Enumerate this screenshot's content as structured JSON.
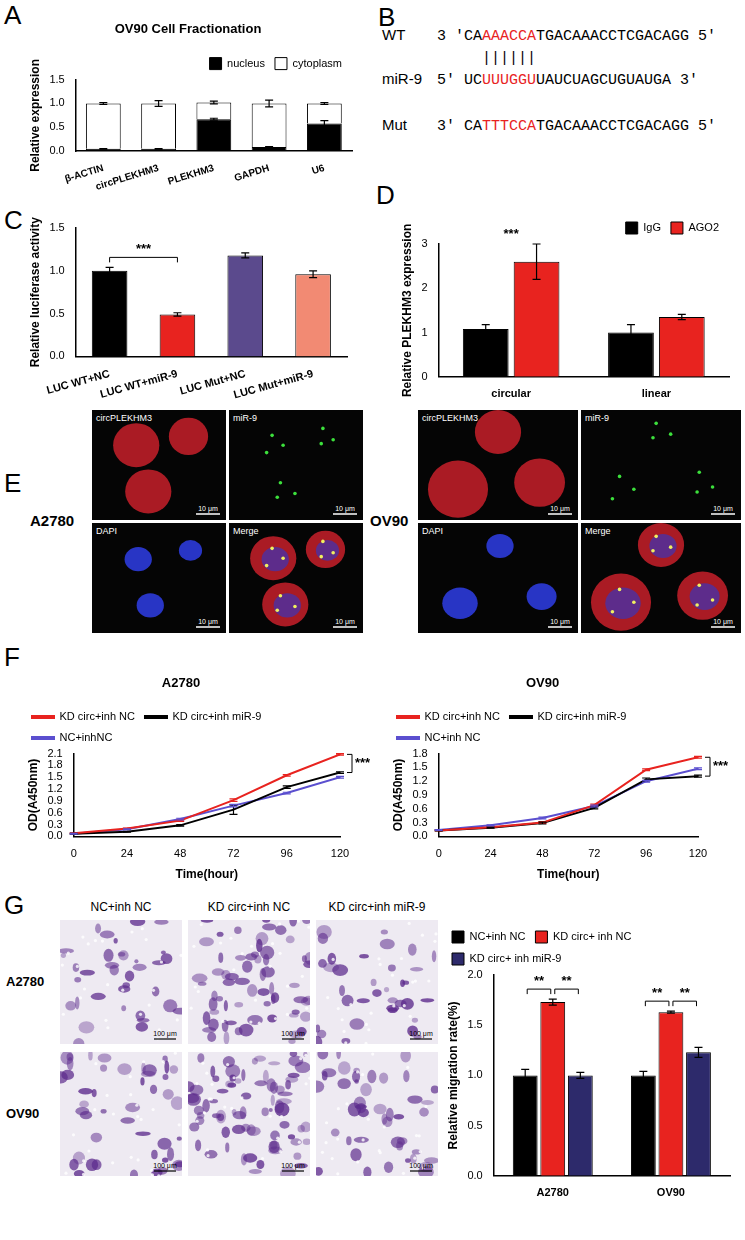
{
  "chart_data": [
    {
      "panel": "A",
      "type": "bar",
      "stacked": true,
      "title": "OV90 Cell Fractionation",
      "categories": [
        "β-ACTIN",
        "circPLEKHM3",
        "PLEKHM3",
        "GAPDH",
        "U6"
      ],
      "series": [
        {
          "name": "nucleus",
          "color": "#000000",
          "values": [
            0.05,
            0.05,
            0.67,
            0.09,
            0.58
          ],
          "errors": [
            0.005,
            0.005,
            0.02,
            0.005,
            0.06
          ]
        },
        {
          "name": "cytoplasm",
          "color": "#ffffff",
          "values": [
            0.95,
            0.95,
            0.35,
            0.91,
            0.42
          ],
          "errors": [
            0.02,
            0.06,
            0.03,
            0.07,
            0.02
          ]
        }
      ],
      "y_label": "Relative expression",
      "ylim": [
        0,
        1.5
      ],
      "yticks": [
        {
          "value": 0,
          "label": "0.0"
        },
        0.5,
        {
          "value": 1,
          "label": "1.0"
        },
        1.5
      ],
      "legend": "upper right",
      "grid": false
    },
    {
      "panel": "C",
      "type": "bar",
      "categories": [
        "LUC WT+NC",
        "LUC WT+miR-9",
        "LUC Mut+NC",
        "LUC Mut+miR-9"
      ],
      "values": [
        1.0,
        0.49,
        1.18,
        0.96
      ],
      "errors": [
        0.04,
        0.02,
        0.03,
        0.04
      ],
      "colors": [
        "#000000",
        "#e8231f",
        "#5b4a8d",
        "#f28a73"
      ],
      "y_label": "Relative luciferase activity",
      "ylim": [
        0,
        1.5
      ],
      "yticks": [
        {
          "value": 0,
          "label": "0.0"
        },
        0.5,
        {
          "value": 1,
          "label": "1.0"
        },
        1.5
      ],
      "grid": false,
      "annotations": [
        {
          "text": "***",
          "between": [
            "LUC WT+NC",
            "LUC WT+miR-9"
          ]
        }
      ]
    },
    {
      "panel": "D",
      "type": "bar",
      "categories": [
        "circular",
        "linear"
      ],
      "series": [
        {
          "name": "IgG",
          "color": "#000000",
          "values": [
            1.08,
            1.0
          ],
          "errors": [
            0.1,
            0.18
          ]
        },
        {
          "name": "AGO2",
          "color": "#e8231f",
          "values": [
            2.6,
            1.35
          ],
          "errors": [
            0.4,
            0.06
          ]
        }
      ],
      "y_label": "Relative PLEKHM3 expression",
      "ylim": [
        0,
        3
      ],
      "yticks": [
        0,
        1,
        2,
        3
      ],
      "legend": "upper right",
      "grid": false,
      "annotations": [
        {
          "text": "***",
          "category": "circular"
        }
      ]
    },
    {
      "panel": "F",
      "type": "line",
      "title": "A2780",
      "x": [
        0,
        24,
        48,
        72,
        96,
        120
      ],
      "series": [
        {
          "name": "KD circ+inh NC",
          "color": "#e8231f",
          "values": [
            0.08,
            0.2,
            0.4,
            0.92,
            1.55,
            2.08
          ],
          "errors": [
            0.01,
            0.01,
            0.02,
            0.03,
            0.02,
            0.02
          ]
        },
        {
          "name": "KD circ+inh miR-9",
          "color": "#000000",
          "values": [
            0.07,
            0.12,
            0.28,
            0.68,
            1.25,
            1.62
          ],
          "errors": [
            0.01,
            0.01,
            0.02,
            0.12,
            0.03,
            0.02
          ]
        },
        {
          "name": "NC+inhNC",
          "color": "#5b4fcf",
          "values": [
            0.07,
            0.18,
            0.44,
            0.78,
            1.1,
            1.5
          ],
          "errors": [
            0.01,
            0.01,
            0.02,
            0.03,
            0.02,
            0.02
          ]
        }
      ],
      "x_label": "Time(hour)",
      "y_label": "OD(A450nm)",
      "xlim": [
        0,
        120
      ],
      "xticks": [
        0,
        24,
        48,
        72,
        96,
        120
      ],
      "ylim": [
        0,
        2.1
      ],
      "yticks": [
        {
          "value": 0,
          "label": "0.0"
        },
        0.3,
        0.6,
        0.9,
        1.2,
        1.5,
        1.8,
        2.1
      ],
      "legend": "upper left",
      "grid": false,
      "annotations": [
        {
          "text": "***",
          "between": [
            "KD circ+inh NC",
            "KD circ+inh miR-9"
          ]
        }
      ]
    },
    {
      "type": "line",
      "title": "OV90",
      "x": [
        0,
        24,
        48,
        72,
        96,
        120
      ],
      "series": [
        {
          "name": "KD circ+inh NC",
          "color": "#e8231f",
          "values": [
            0.13,
            0.2,
            0.3,
            0.68,
            1.45,
            1.72
          ],
          "errors": [
            0.01,
            0.01,
            0.02,
            0.02,
            0.02,
            0.02
          ]
        },
        {
          "name": "KD circ+inh miR-9",
          "color": "#000000",
          "values": [
            0.13,
            0.19,
            0.29,
            0.62,
            1.24,
            1.31
          ],
          "errors": [
            0.01,
            0.01,
            0.02,
            0.02,
            0.03,
            0.02
          ]
        },
        {
          "name": "NC+inh NC",
          "color": "#5b4fcf",
          "values": [
            0.14,
            0.24,
            0.4,
            0.66,
            1.2,
            1.47
          ],
          "errors": [
            0.01,
            0.01,
            0.02,
            0.02,
            0.02,
            0.02
          ]
        }
      ],
      "x_label": "Time(hour)",
      "y_label": "OD(A450nm)",
      "xlim": [
        0,
        120
      ],
      "xticks": [
        0,
        24,
        48,
        72,
        96,
        120
      ],
      "ylim": [
        0,
        1.8
      ],
      "yticks": [
        {
          "value": 0,
          "label": "0.0"
        },
        0.3,
        0.6,
        0.9,
        1.2,
        1.5,
        1.8
      ],
      "legend": "upper left",
      "grid": false,
      "annotations": [
        {
          "text": "***",
          "between": [
            "KD circ+inh NC",
            "KD circ+inh miR-9"
          ]
        }
      ]
    },
    {
      "type": "bar",
      "categories": [
        "A2780",
        "OV90"
      ],
      "series": [
        {
          "name": "NC+inh NC",
          "color": "#000000",
          "values": [
            1.0,
            1.0
          ],
          "errors": [
            0.06,
            0.04
          ]
        },
        {
          "name": "KD circ+ inh NC",
          "color": "#e8231f",
          "values": [
            1.73,
            1.63
          ],
          "errors": [
            0.03,
            0.01
          ]
        },
        {
          "name": "KD circ+ inh miR-9",
          "color": "#2d2a6b",
          "values": [
            1.0,
            1.23
          ],
          "errors": [
            0.03,
            0.05
          ]
        }
      ],
      "y_label": "Relative migration rate(%)",
      "ylim": [
        0,
        2
      ],
      "yticks": [
        {
          "value": 0,
          "label": "0.0"
        },
        0.5,
        {
          "value": 1,
          "label": "1.0"
        },
        1.5,
        {
          "value": 2,
          "label": "2.0"
        }
      ],
      "legend": "upper left",
      "grid": false,
      "annotations": [
        {
          "text": "**",
          "category": "A2780",
          "between": [
            "NC+inh NC",
            "KD circ+ inh NC"
          ]
        },
        {
          "text": "**",
          "category": "A2780",
          "between": [
            "KD circ+ inh NC",
            "KD circ+ inh miR-9"
          ]
        },
        {
          "text": "**",
          "category": "OV90",
          "between": [
            "NC+inh NC",
            "KD circ+ inh NC"
          ]
        },
        {
          "text": "**",
          "category": "OV90",
          "between": [
            "KD circ+ inh NC",
            "KD circ+ inh miR-9"
          ]
        }
      ]
    }
  ],
  "sequences": {
    "panel": "B",
    "color": "#e8231f",
    "rows": [
      {
        "label": "WT",
        "segments": [
          {
            "text": "3 'CA"
          },
          {
            "text": "AAACCA",
            "highlight": true
          },
          {
            "text": "TGACAAACCTCGACAGG 5'"
          }
        ]
      },
      {
        "pairing": "||||||"
      },
      {
        "label": "miR-9",
        "segments": [
          {
            "text": "5' UC"
          },
          {
            "text": "UUUGGU",
            "highlight": true
          },
          {
            "text": "UAUCUAGCUGUAUGA 3'"
          }
        ]
      },
      {
        "label": "Mut",
        "segments": [
          {
            "text": "3' CA"
          },
          {
            "text": "TTTCCA",
            "highlight": true
          },
          {
            "text": "TGACAAACCTCGACAGG 5'"
          }
        ]
      }
    ]
  },
  "fish_images": {
    "panel": "E",
    "groups": [
      {
        "label": "A2780",
        "channels": [
          "circPLEKHM3",
          "miR-9",
          "DAPI",
          "Merge"
        ],
        "scale_bar": "10 μm"
      },
      {
        "label": "OV90",
        "channels": [
          "circPLEKHM3",
          "miR-9",
          "DAPI",
          "Merge"
        ],
        "scale_bar": "10 μm"
      }
    ]
  },
  "migration_images": {
    "panel": "G",
    "columns": [
      "NC+inh NC",
      "KD circ+inh NC",
      "KD circ+inh miR-9"
    ],
    "rows": [
      "A2780",
      "OV90"
    ],
    "scale_bar": "100 μm"
  }
}
